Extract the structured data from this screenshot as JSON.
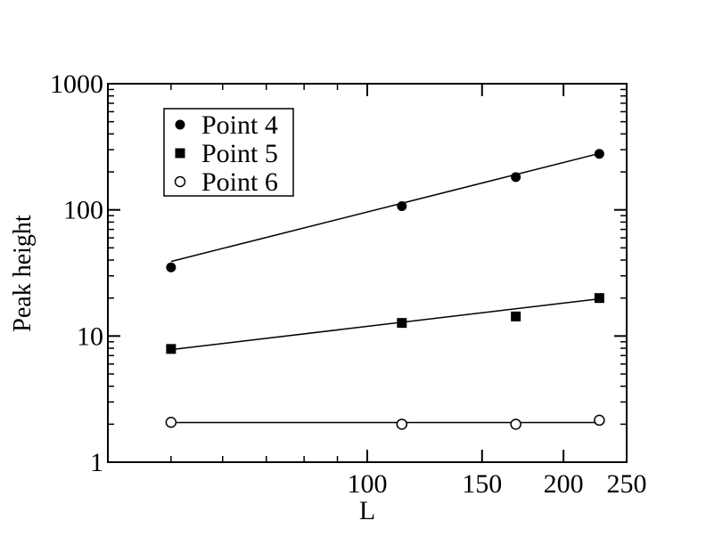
{
  "chart_data": {
    "type": "scatter",
    "xlabel": "L",
    "ylabel": "Peak height",
    "xscale": "log",
    "yscale": "log",
    "xlim": [
      40,
      250
    ],
    "ylim": [
      1,
      1000
    ],
    "xticks": [
      100,
      150,
      200,
      250
    ],
    "xtick_labels": [
      "100",
      "150",
      "200",
      "250"
    ],
    "yticks": [
      1,
      10,
      100,
      1000
    ],
    "ytick_labels": [
      "1",
      "10",
      "100",
      "1000"
    ],
    "grid": false,
    "legend_position": "top-left",
    "series": [
      {
        "name": "Point 4",
        "marker": "filled-circle",
        "x": [
          50,
          113,
          169,
          227
        ],
        "y": [
          35,
          107,
          182,
          278
        ],
        "fit": {
          "x": [
            50,
            227
          ],
          "y": [
            39,
            280
          ]
        }
      },
      {
        "name": "Point 5",
        "marker": "filled-square",
        "x": [
          50,
          113,
          169,
          227
        ],
        "y": [
          7.9,
          12.7,
          14.3,
          20
        ],
        "fit": {
          "x": [
            50,
            227
          ],
          "y": [
            7.8,
            19.7
          ]
        }
      },
      {
        "name": "Point 6",
        "marker": "open-circle",
        "x": [
          50,
          113,
          169,
          227
        ],
        "y": [
          2.07,
          2.0,
          2.0,
          2.15
        ],
        "fit": {
          "x": [
            50,
            227
          ],
          "y": [
            2.06,
            2.06
          ]
        }
      }
    ]
  }
}
